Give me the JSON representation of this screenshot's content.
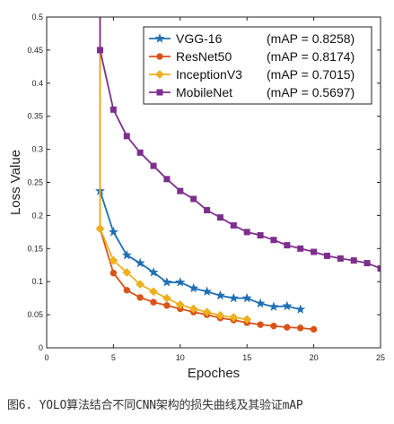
{
  "caption": "图6. YOLO算法结合不同CNN架构的损失曲线及其验证mAP",
  "chart_data": {
    "type": "line",
    "xlabel": "Epoches",
    "ylabel": "Loss Value",
    "xlim": [
      0,
      25
    ],
    "ylim": [
      0,
      0.5
    ],
    "xticks": [
      "0",
      "5",
      "10",
      "15",
      "20",
      "25"
    ],
    "yticks": [
      "0",
      "0.05",
      "0.1",
      "0.15",
      "0.2",
      "0.25",
      "0.3",
      "0.35",
      "0.4",
      "0.45",
      "0.5"
    ],
    "grid": false,
    "legend_position": "top-right",
    "series": [
      {
        "name": "VGG-16",
        "map_label": "(mAP = 0.8258)",
        "color": "#1f6fb4",
        "marker": "star",
        "x": [
          4,
          5,
          6,
          7,
          8,
          9,
          10,
          11,
          12,
          13,
          14,
          15,
          16,
          17,
          18,
          19
        ],
        "y": [
          0.237,
          0.175,
          0.14,
          0.128,
          0.114,
          0.099,
          0.099,
          0.09,
          0.085,
          0.079,
          0.075,
          0.075,
          0.067,
          0.062,
          0.063,
          0.058
        ]
      },
      {
        "name": "ResNet50",
        "map_label": "(mAP = 0.8174)",
        "color": "#d95319",
        "marker": "circle",
        "x": [
          4,
          5,
          6,
          7,
          8,
          9,
          10,
          11,
          12,
          13,
          14,
          15,
          16,
          17,
          18,
          19,
          20
        ],
        "y": [
          0.18,
          0.113,
          0.087,
          0.076,
          0.069,
          0.064,
          0.059,
          0.054,
          0.05,
          0.045,
          0.042,
          0.038,
          0.035,
          0.033,
          0.031,
          0.03,
          0.028
        ]
      },
      {
        "name": "InceptionV3",
        "map_label": "(mAP = 0.7015)",
        "color": "#edb120",
        "marker": "diamond",
        "x": [
          4,
          5,
          6,
          7,
          8,
          9,
          10,
          11,
          12,
          13,
          14,
          15
        ],
        "y": [
          0.18,
          0.132,
          0.114,
          0.096,
          0.085,
          0.075,
          0.065,
          0.059,
          0.054,
          0.049,
          0.046,
          0.043
        ]
      },
      {
        "name": "MobileNet",
        "map_label": "(mAP = 0.5697)",
        "color": "#7e2f8e",
        "marker": "square",
        "x": [
          4,
          5,
          6,
          7,
          8,
          9,
          10,
          11,
          12,
          13,
          14,
          15,
          16,
          17,
          18,
          19,
          20,
          21,
          22,
          23,
          24,
          25
        ],
        "y": [
          0.45,
          0.36,
          0.32,
          0.295,
          0.275,
          0.255,
          0.237,
          0.225,
          0.208,
          0.197,
          0.185,
          0.175,
          0.17,
          0.163,
          0.155,
          0.15,
          0.145,
          0.139,
          0.135,
          0.132,
          0.128,
          0.12
        ]
      }
    ]
  }
}
